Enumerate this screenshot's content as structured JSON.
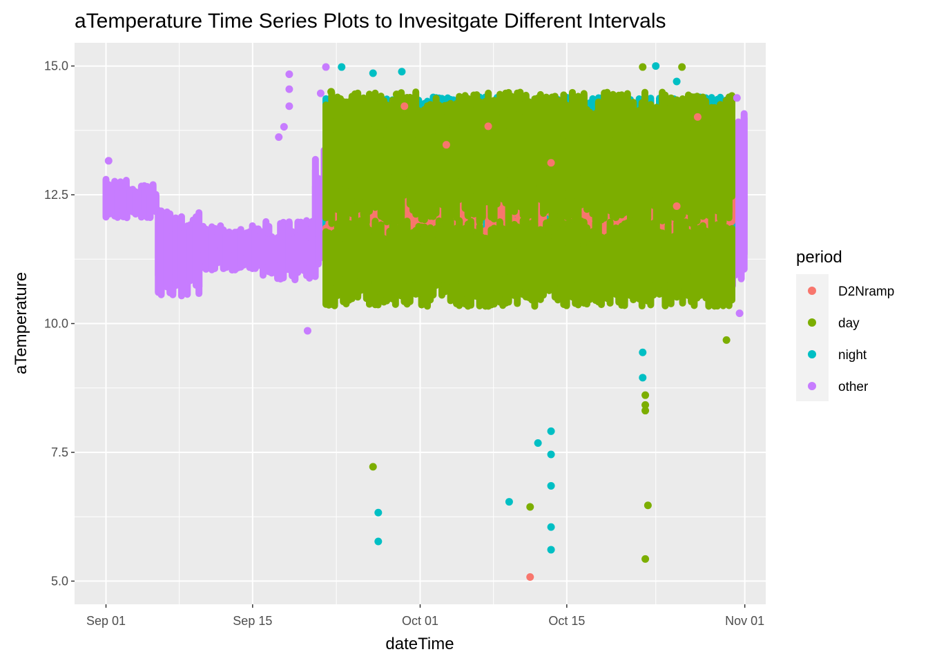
{
  "chart_data": {
    "type": "scatter",
    "title": "aTemperature Time Series Plots to Invesitgate Different Intervals",
    "xlabel": "dateTime",
    "ylabel": "aTemperature",
    "x_is_date": true,
    "xlim": [
      "2020-08-29",
      "2020-11-03"
    ],
    "ylim": [
      4.55,
      15.45
    ],
    "x_ticks": [
      {
        "value": "2020-09-01",
        "label": "Sep 01"
      },
      {
        "value": "2020-09-15",
        "label": "Sep 15"
      },
      {
        "value": "2020-10-01",
        "label": "Oct 01"
      },
      {
        "value": "2020-10-15",
        "label": "Oct 15"
      },
      {
        "value": "2020-11-01",
        "label": "Nov 01"
      }
    ],
    "y_ticks": [
      {
        "value": 5.0,
        "label": "5.0"
      },
      {
        "value": 7.5,
        "label": "7.5"
      },
      {
        "value": 10.0,
        "label": "10.0"
      },
      {
        "value": 12.5,
        "label": "12.5"
      },
      {
        "value": 15.0,
        "label": "15.0"
      }
    ],
    "grid": true,
    "legend": {
      "title": "period",
      "position": "right"
    },
    "colors": {
      "panel_background": "#EBEBEB",
      "gridline": "#FFFFFF"
    },
    "series": [
      {
        "name": "D2Nramp",
        "color": "#F8766D",
        "bands": [
          {
            "x_start": "2020-09-22",
            "x_end": "2020-10-31",
            "y_min": 11.2,
            "y_max": 13.9
          },
          {
            "x_start": "2020-09-22",
            "x_end": "2020-10-31",
            "y_min": 10.9,
            "y_max": 12.1
          }
        ],
        "points": [
          {
            "x": "2020-10-11 12:00",
            "y": 5.08
          },
          {
            "x": "2020-10-07 12:00",
            "y": 13.83
          },
          {
            "x": "2020-10-27 12:00",
            "y": 14.01
          },
          {
            "x": "2020-10-25 12:00",
            "y": 12.28
          },
          {
            "x": "2020-10-13 12:00",
            "y": 13.12
          },
          {
            "x": "2020-09-29 12:00",
            "y": 14.22
          },
          {
            "x": "2020-10-03 12:00",
            "y": 13.47
          }
        ]
      },
      {
        "name": "day",
        "color": "#7CAE00",
        "bands": [
          {
            "x_start": "2020-09-22",
            "x_end": "2020-10-31",
            "y_min": 11.8,
            "y_max": 14.5
          },
          {
            "x_start": "2020-09-22",
            "x_end": "2020-10-31",
            "y_min": 10.2,
            "y_max": 12.0
          }
        ],
        "points": [
          {
            "x": "2020-09-26 12:00",
            "y": 7.22
          },
          {
            "x": "2020-10-11 12:00",
            "y": 6.44
          },
          {
            "x": "2020-10-22 12:00",
            "y": 8.61
          },
          {
            "x": "2020-10-22 12:00",
            "y": 8.42
          },
          {
            "x": "2020-10-22 12:00",
            "y": 8.31
          },
          {
            "x": "2020-10-22 18:00",
            "y": 6.47
          },
          {
            "x": "2020-10-22 12:00",
            "y": 5.43
          },
          {
            "x": "2020-09-22 12:00",
            "y": 14.5
          },
          {
            "x": "2020-10-22 06:00",
            "y": 14.98
          },
          {
            "x": "2020-10-26 00:00",
            "y": 14.98
          },
          {
            "x": "2020-10-30 06:00",
            "y": 9.68
          },
          {
            "x": "2020-09-28 18:00",
            "y": 14.45
          }
        ]
      },
      {
        "name": "night",
        "color": "#00BFC4",
        "bands": [
          {
            "x_start": "2020-09-22",
            "x_end": "2020-10-31",
            "y_min": 13.4,
            "y_max": 14.4
          },
          {
            "x_start": "2020-09-22",
            "x_end": "2020-10-31",
            "y_min": 11.3,
            "y_max": 12.4
          }
        ],
        "points": [
          {
            "x": "2020-09-27 00:00",
            "y": 6.33
          },
          {
            "x": "2020-09-27 00:00",
            "y": 5.77
          },
          {
            "x": "2020-10-09 12:00",
            "y": 6.54
          },
          {
            "x": "2020-10-12 06:00",
            "y": 7.68
          },
          {
            "x": "2020-10-13 12:00",
            "y": 7.91
          },
          {
            "x": "2020-10-13 12:00",
            "y": 7.46
          },
          {
            "x": "2020-10-13 12:00",
            "y": 6.85
          },
          {
            "x": "2020-10-13 12:00",
            "y": 6.05
          },
          {
            "x": "2020-10-13 12:00",
            "y": 5.61
          },
          {
            "x": "2020-10-22 06:00",
            "y": 9.44
          },
          {
            "x": "2020-10-22 06:00",
            "y": 8.95
          },
          {
            "x": "2020-09-23 12:00",
            "y": 14.98
          },
          {
            "x": "2020-09-26 12:00",
            "y": 14.86
          },
          {
            "x": "2020-09-29 06:00",
            "y": 14.89
          },
          {
            "x": "2020-10-23 12:00",
            "y": 15.0
          },
          {
            "x": "2020-10-25 12:00",
            "y": 14.7
          }
        ]
      },
      {
        "name": "other",
        "color": "#C77CFF",
        "bands": [
          {
            "x_start": "2020-09-01",
            "x_end": "2020-09-03",
            "y_min": 11.9,
            "y_max": 12.8
          },
          {
            "x_start": "2020-09-03",
            "x_end": "2020-09-06",
            "y_min": 11.9,
            "y_max": 12.7
          },
          {
            "x_start": "2020-09-06",
            "x_end": "2020-09-10",
            "y_min": 10.4,
            "y_max": 12.2
          },
          {
            "x_start": "2020-09-10",
            "x_end": "2020-09-16",
            "y_min": 10.9,
            "y_max": 11.9
          },
          {
            "x_start": "2020-09-16",
            "x_end": "2020-09-21",
            "y_min": 10.7,
            "y_max": 12.0
          },
          {
            "x_start": "2020-09-21",
            "x_end": "2020-09-22",
            "y_min": 11.0,
            "y_max": 13.4
          },
          {
            "x_start": "2020-10-30",
            "x_end": "2020-11-01",
            "y_min": 10.3,
            "y_max": 14.2
          }
        ],
        "points": [
          {
            "x": "2020-09-01 06:00",
            "y": 13.16
          },
          {
            "x": "2020-09-18 12:00",
            "y": 14.84
          },
          {
            "x": "2020-09-18 12:00",
            "y": 14.55
          },
          {
            "x": "2020-09-18 12:00",
            "y": 14.22
          },
          {
            "x": "2020-09-20 06:00",
            "y": 9.86
          },
          {
            "x": "2020-09-22 00:00",
            "y": 14.98
          },
          {
            "x": "2020-09-21 12:00",
            "y": 14.47
          },
          {
            "x": "2020-09-17 12:00",
            "y": 13.62
          },
          {
            "x": "2020-09-18 00:00",
            "y": 13.82
          },
          {
            "x": "2020-10-31 06:00",
            "y": 14.38
          },
          {
            "x": "2020-10-31 12:00",
            "y": 10.2
          }
        ]
      }
    ]
  }
}
